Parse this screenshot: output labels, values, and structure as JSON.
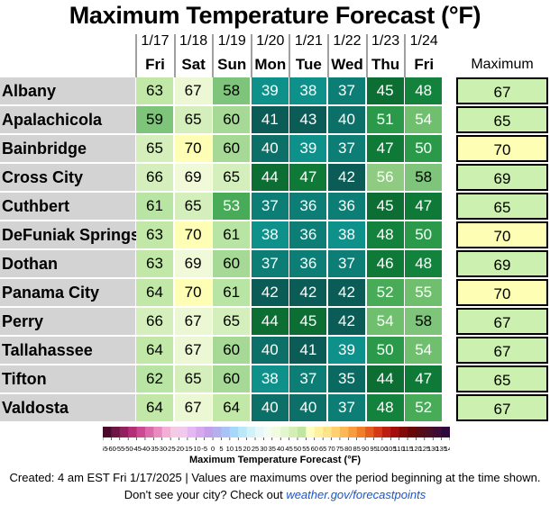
{
  "chart_data": {
    "type": "table",
    "title": "Maximum Temperature Forecast (°F)",
    "columns": [
      {
        "date": "1/17",
        "day": "Fri"
      },
      {
        "date": "1/18",
        "day": "Sat"
      },
      {
        "date": "1/19",
        "day": "Sun"
      },
      {
        "date": "1/20",
        "day": "Mon"
      },
      {
        "date": "1/21",
        "day": "Tue"
      },
      {
        "date": "1/22",
        "day": "Wed"
      },
      {
        "date": "1/23",
        "day": "Thu"
      },
      {
        "date": "1/24",
        "day": "Fri"
      }
    ],
    "max_column_label": "Maximum",
    "rows": [
      {
        "city": "Albany",
        "values": [
          63,
          67,
          58,
          39,
          38,
          37,
          45,
          48
        ],
        "maximum": 67
      },
      {
        "city": "Apalachicola",
        "values": [
          59,
          65,
          60,
          41,
          43,
          40,
          51,
          54
        ],
        "maximum": 65
      },
      {
        "city": "Bainbridge",
        "values": [
          65,
          70,
          60,
          40,
          39,
          37,
          47,
          50
        ],
        "maximum": 70
      },
      {
        "city": "Cross City",
        "values": [
          66,
          69,
          65,
          44,
          47,
          42,
          56,
          58
        ],
        "maximum": 69
      },
      {
        "city": "Cuthbert",
        "values": [
          61,
          65,
          53,
          37,
          36,
          36,
          45,
          47
        ],
        "maximum": 65
      },
      {
        "city": "DeFuniak Springs",
        "values": [
          63,
          70,
          61,
          38,
          36,
          38,
          48,
          50
        ],
        "maximum": 70
      },
      {
        "city": "Dothan",
        "values": [
          63,
          69,
          60,
          37,
          36,
          37,
          46,
          48
        ],
        "maximum": 69
      },
      {
        "city": "Panama City",
        "values": [
          64,
          70,
          61,
          42,
          42,
          42,
          52,
          55
        ],
        "maximum": 70
      },
      {
        "city": "Perry",
        "values": [
          66,
          67,
          65,
          44,
          45,
          42,
          54,
          58
        ],
        "maximum": 67
      },
      {
        "city": "Tallahassee",
        "values": [
          64,
          67,
          60,
          40,
          41,
          39,
          50,
          54
        ],
        "maximum": 67
      },
      {
        "city": "Tifton",
        "values": [
          62,
          65,
          60,
          38,
          37,
          35,
          44,
          47
        ],
        "maximum": 65
      },
      {
        "city": "Valdosta",
        "values": [
          64,
          67,
          64,
          40,
          40,
          37,
          48,
          52
        ],
        "maximum": 67
      }
    ],
    "color_scale": {
      "title": "Maximum Temperature Forecast (°F)",
      "ticks": [
        -65,
        -60,
        -55,
        -50,
        -45,
        -40,
        -35,
        -30,
        -25,
        -20,
        -15,
        -10,
        -5,
        0,
        5,
        10,
        15,
        20,
        25,
        30,
        35,
        40,
        45,
        50,
        55,
        60,
        65,
        70,
        75,
        80,
        85,
        90,
        95,
        100,
        105,
        110,
        115,
        120,
        125,
        130,
        135,
        140
      ],
      "colors": [
        "#4a0a2e",
        "#6e1446",
        "#93205e",
        "#b42e78",
        "#cc4a93",
        "#db6aaa",
        "#e88cc0",
        "#f2b0d6",
        "#f5cbe4",
        "#f1c8ee",
        "#e6b8f2",
        "#d6a8f0",
        "#c4a0ea",
        "#b4b0f0",
        "#a8c4f6",
        "#a6d8fa",
        "#b8e8fa",
        "#d2f2fa",
        "#e8f8f8",
        "#f4fbf2",
        "#f0fbe0",
        "#e4f6cc",
        "#d4eeb6",
        "#c0e6a2",
        "#fefec0",
        "#fef2a0",
        "#fee488",
        "#fed070",
        "#fcb856",
        "#f89c3e",
        "#f07e2c",
        "#e45c20",
        "#d43a16",
        "#bc1e12",
        "#a00e0e",
        "#840a0a",
        "#6a0808",
        "#580c14",
        "#4c0e24",
        "#3e0c34",
        "#2e0a3c"
      ]
    }
  },
  "footer": {
    "created": "Created: 4 am EST Fri 1/17/2025  |  Values are maximums over the period beginning at the time shown.",
    "link_prefix": "Don't see your city? Check out ",
    "link_text": "weather.gov/forecastpoints"
  }
}
